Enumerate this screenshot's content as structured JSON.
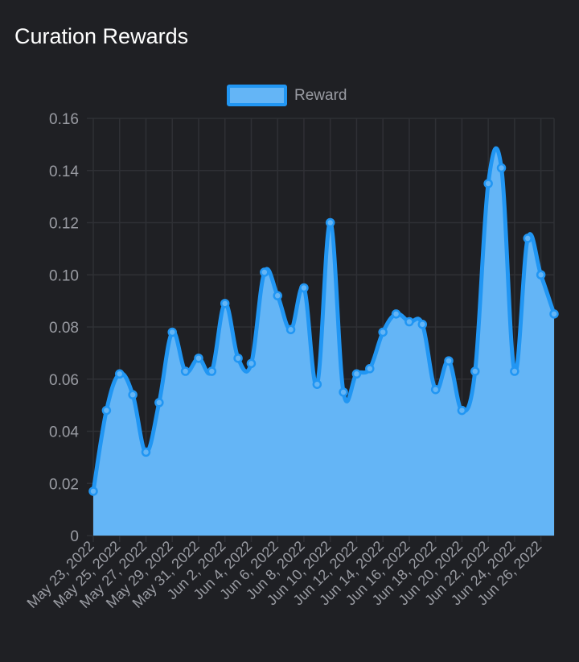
{
  "page": {
    "title": "Curation Rewards"
  },
  "colors": {
    "background": "#1f2024",
    "line": "#2196f3",
    "fill": "#64b5f6",
    "grid": "#2f3035",
    "text": "#9a9ca3",
    "title": "#ffffff"
  },
  "chart_data": {
    "type": "area",
    "title": "",
    "xlabel": "",
    "ylabel": "",
    "legend": {
      "position": "top-center",
      "entries": [
        "Reward"
      ]
    },
    "grid": true,
    "ylim": [
      0,
      0.16
    ],
    "y_ticks": [
      "0",
      "0.02",
      "0.04",
      "0.06",
      "0.08",
      "0.10",
      "0.12",
      "0.14",
      "0.16"
    ],
    "x_tick_labels": [
      "May 23, 2022",
      "May 25, 2022",
      "May 27, 2022",
      "May 29, 2022",
      "May 31, 2022",
      "Jun 2, 2022",
      "Jun 4, 2022",
      "Jun 6, 2022",
      "Jun 8, 2022",
      "Jun 10, 2022",
      "Jun 12, 2022",
      "Jun 14, 2022",
      "Jun 16, 2022",
      "Jun 18, 2022",
      "Jun 20, 2022",
      "Jun 22, 2022",
      "Jun 24, 2022",
      "Jun 26, 2022"
    ],
    "x": [
      "2022-05-23",
      "2022-05-24",
      "2022-05-25",
      "2022-05-26",
      "2022-05-27",
      "2022-05-28",
      "2022-05-29",
      "2022-05-30",
      "2022-05-31",
      "2022-06-01",
      "2022-06-02",
      "2022-06-03",
      "2022-06-04",
      "2022-06-05",
      "2022-06-06",
      "2022-06-07",
      "2022-06-08",
      "2022-06-09",
      "2022-06-10",
      "2022-06-11",
      "2022-06-12",
      "2022-06-13",
      "2022-06-14",
      "2022-06-15",
      "2022-06-16",
      "2022-06-17",
      "2022-06-18",
      "2022-06-19",
      "2022-06-20",
      "2022-06-21",
      "2022-06-22",
      "2022-06-23",
      "2022-06-24",
      "2022-06-25",
      "2022-06-26",
      "2022-06-27"
    ],
    "series": [
      {
        "name": "Reward",
        "values": [
          0.017,
          0.048,
          0.062,
          0.054,
          0.032,
          0.051,
          0.078,
          0.063,
          0.068,
          0.063,
          0.089,
          0.068,
          0.066,
          0.101,
          0.092,
          0.079,
          0.095,
          0.058,
          0.12,
          0.055,
          0.062,
          0.064,
          0.078,
          0.085,
          0.082,
          0.081,
          0.056,
          0.067,
          0.048,
          0.063,
          0.135,
          0.141,
          0.063,
          0.114,
          0.1,
          0.085
        ]
      }
    ]
  }
}
